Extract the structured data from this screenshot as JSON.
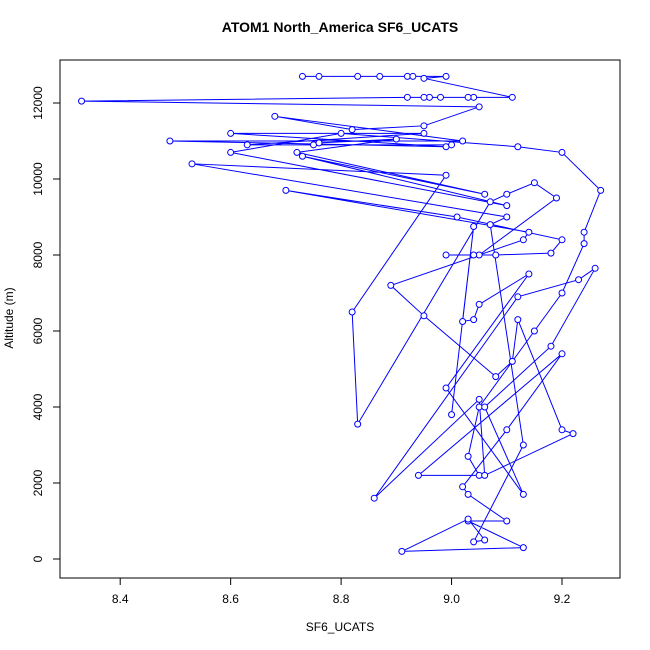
{
  "chart_data": {
    "type": "line",
    "title": "ATOM1 North_America SF6_UCATS",
    "x_label": "SF6_UCATS",
    "y_label": "Altitude (m)",
    "color": "#0000ff",
    "x": [
      8.73,
      8.76,
      8.83,
      8.87,
      8.92,
      8.93,
      8.99,
      8.95,
      9.11,
      9.04,
      9.03,
      8.98,
      8.96,
      8.95,
      8.92,
      8.33,
      9.05,
      8.95,
      8.82,
      8.68,
      9.02,
      8.49,
      8.99,
      8.6,
      8.95,
      8.63,
      9.0,
      8.75,
      8.76,
      8.9,
      8.72,
      9.06,
      8.73,
      9.1,
      8.6,
      8.8,
      9.12,
      9.2,
      9.27,
      9.24,
      9.24,
      9.2,
      9.15,
      9.05,
      9.03,
      9.05,
      8.94,
      9.2,
      9.1,
      9.02,
      9.03,
      9.1,
      9.03,
      9.13,
      8.91,
      9.03,
      9.06,
      9.04,
      9.13,
      9.07,
      9.1,
      8.53,
      8.99,
      8.82,
      8.83,
      9.07,
      9.1,
      9.15,
      9.19,
      9.05,
      8.99,
      9.04,
      9.08,
      9.18,
      9.2,
      9.01,
      8.7,
      9.14,
      9.13,
      8.89,
      8.95,
      9.08,
      9.11,
      9.12,
      9.2,
      9.22,
      9.06,
      9.05,
      8.86,
      9.12,
      9.23,
      9.26,
      9.18,
      9.06,
      9.13,
      8.99,
      9.14,
      9.05,
      9.04,
      9.02,
      9.04,
      9.0
    ],
    "values": [
      12700,
      12700,
      12700,
      12700,
      12700,
      12700,
      12700,
      12650,
      12150,
      12150,
      12150,
      12150,
      12150,
      12150,
      12150,
      12050,
      11900,
      11400,
      11300,
      11650,
      11000,
      11000,
      10850,
      11200,
      11200,
      10900,
      10900,
      10900,
      10950,
      11050,
      10700,
      9600,
      10600,
      9300,
      10700,
      11200,
      10850,
      10700,
      9700,
      8600,
      8300,
      7000,
      6000,
      4000,
      2700,
      2200,
      2200,
      5400,
      3400,
      1900,
      1700,
      1000,
      1000,
      300,
      200,
      1050,
      500,
      450,
      3000,
      8800,
      9000,
      10400,
      10100,
      6500,
      3550,
      9400,
      9600,
      9900,
      9500,
      8000,
      8000,
      8000,
      8000,
      8050,
      8400,
      9000,
      9700,
      8600,
      8400,
      7200,
      6400,
      4800,
      5200,
      6300,
      3400,
      3300,
      2200,
      4200,
      1600,
      6900,
      7350,
      7650,
      5600,
      4000,
      1700,
      4500,
      7500,
      6700,
      6300,
      6250,
      8750,
      3800
    ],
    "xlim": [
      8.291,
      9.305
    ],
    "ylim": [
      -500,
      13132
    ],
    "xticks": [
      8.4,
      8.6,
      8.8,
      {
        "value": 9,
        "label": "9.0"
      },
      9.2
    ],
    "yticks": [
      0,
      2000,
      4000,
      6000,
      8000,
      10000,
      12000
    ]
  }
}
